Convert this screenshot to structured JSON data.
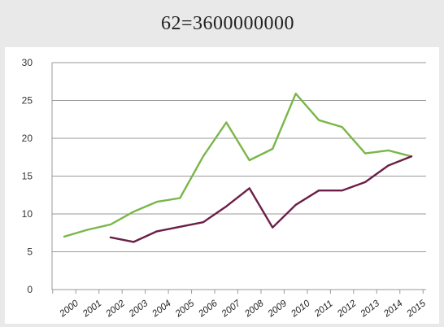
{
  "header": {
    "title": "62=3600000000"
  },
  "chart_data": {
    "type": "line",
    "title": "",
    "xlabel": "",
    "ylabel": "",
    "x": [
      "2000",
      "2001",
      "2002",
      "2003",
      "2004",
      "2005",
      "2006",
      "2007",
      "2008",
      "2009",
      "2010",
      "2011",
      "2012",
      "2013",
      "2014",
      "2015"
    ],
    "yticks": [
      "0",
      "5",
      "10",
      "15",
      "20",
      "25",
      "30"
    ],
    "ylim": [
      0,
      30
    ],
    "grid": true,
    "legend": "none",
    "series": [
      {
        "color": "#7ab648",
        "values": [
          7.0,
          7.9,
          8.6,
          10.3,
          11.6,
          12.1,
          17.6,
          22.1,
          17.1,
          18.6,
          25.9,
          22.4,
          21.5,
          18.0,
          18.4,
          17.6
        ]
      },
      {
        "color": "#6b1f47",
        "values": [
          null,
          null,
          6.9,
          6.3,
          7.7,
          8.3,
          8.9,
          11.0,
          13.4,
          8.2,
          11.2,
          13.1,
          13.1,
          14.2,
          16.4,
          17.6
        ]
      }
    ]
  }
}
